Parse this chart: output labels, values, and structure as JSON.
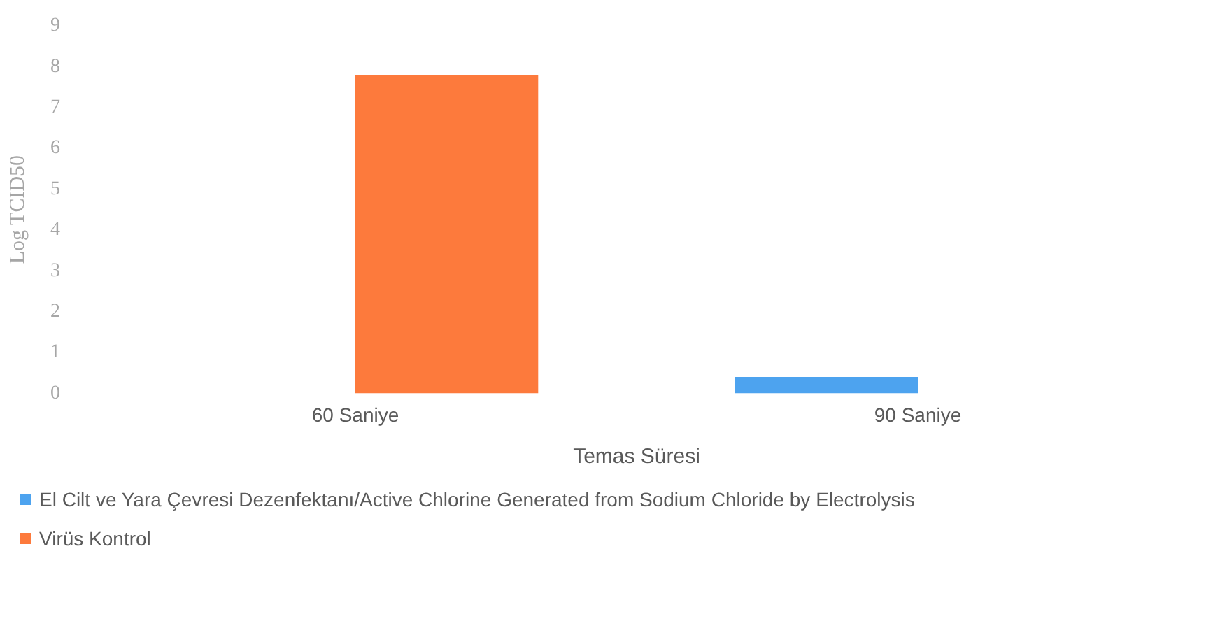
{
  "chart_data": {
    "type": "bar",
    "xlabel": "Temas Süresi",
    "ylabel": "Log TCID50",
    "categories": [
      "60 Saniye",
      "90 Saniye"
    ],
    "series": [
      {
        "name": "El Cilt ve Yara Çevresi Dezenfektanı/Active Chlorine Generated from Sodium Chloride by Electrolysis",
        "color": "#4da3ef",
        "values": [
          null,
          0.4
        ]
      },
      {
        "name": "Virüs Kontrol",
        "color": "#fd7a3c",
        "values": [
          7.8,
          null
        ]
      }
    ],
    "ylim": [
      0,
      9
    ],
    "yticks": [
      0,
      1,
      2,
      3,
      4,
      5,
      6,
      7,
      8,
      9
    ],
    "grid": false,
    "legend": "bottom"
  }
}
